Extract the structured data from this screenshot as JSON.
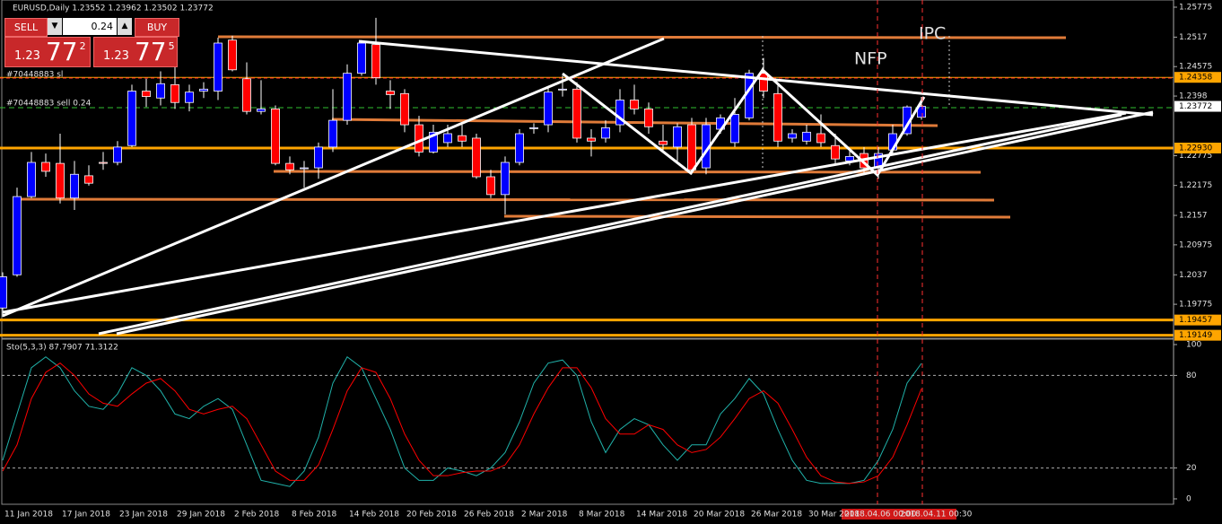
{
  "header": {
    "symbol_title": "EURUSD,Daily  1.23552 1.23962 1.23502 1.23772"
  },
  "trade_panel": {
    "sell_label": "SELL",
    "buy_label": "BUY",
    "lot": "0.24",
    "sell_price": {
      "big": "1.23",
      "main": "77",
      "sup": "2"
    },
    "buy_price": {
      "big": "1.23",
      "main": "77",
      "sup": "5"
    }
  },
  "orders": {
    "sl_label": "#70448883 sl",
    "order_label": "#70448883 sell 0.24"
  },
  "annotations": {
    "nfp": "NFP",
    "ipc": "IPC"
  },
  "time_markers": [
    "2018.04.06 00:00",
    "2018.04.11 00:30"
  ],
  "chart_data": [
    {
      "type": "candlestick",
      "categories": [
        "11 Jan 2018",
        null,
        null,
        null,
        "17 Jan 2018",
        null,
        null,
        null,
        "23 Jan 2018",
        null,
        null,
        null,
        "29 Jan 2018",
        null,
        null,
        null,
        "2 Feb 2018",
        null,
        null,
        null,
        "8 Feb 2018",
        null,
        null,
        null,
        "14 Feb 2018",
        null,
        null,
        null,
        "20 Feb 2018",
        null,
        null,
        null,
        "26 Feb 2018",
        null,
        null,
        null,
        "2 Mar 2018",
        null,
        null,
        null,
        "8 Mar 2018",
        null,
        null,
        null,
        "14 Mar 2018",
        null,
        null,
        null,
        "20 Mar 2018",
        null,
        null,
        null,
        "26 Mar 2018",
        null,
        null,
        null,
        "30 Mar 2018",
        null,
        null,
        null,
        null,
        null,
        null,
        null,
        null
      ],
      "open": [
        1.197,
        1.2037,
        1.2195,
        1.2264,
        1.2262,
        1.2192,
        1.2237,
        1.2264,
        1.2264,
        1.2298,
        1.2408,
        1.2394,
        1.2421,
        1.2385,
        1.2408,
        1.2408,
        1.2511,
        1.2433,
        1.2367,
        1.2372,
        1.2262,
        1.2253,
        1.2253,
        1.2295,
        1.2349,
        1.2444,
        1.2502,
        1.2408,
        1.2403,
        1.234,
        1.2285,
        1.2304,
        1.2318,
        1.2313,
        1.2235,
        1.2199,
        1.2264,
        1.2334,
        1.234,
        1.2412,
        1.2412,
        1.2313,
        1.2313,
        1.234,
        1.239,
        1.2372,
        1.2307,
        1.2295,
        1.234,
        1.2253,
        1.2331,
        1.2304,
        1.2354,
        1.2444,
        1.2403,
        1.2313,
        1.2307,
        1.2322,
        1.2298,
        1.2267,
        1.2282,
        1.2253,
        1.2289,
        1.2322,
        1.23552
      ],
      "high": [
        1.2042,
        1.2213,
        1.2285,
        1.2282,
        1.2322,
        1.2267,
        1.2258,
        1.2285,
        1.2307,
        1.2421,
        1.2433,
        1.2448,
        1.2466,
        1.2421,
        1.2426,
        1.2516,
        1.252,
        1.2466,
        1.243,
        1.2379,
        1.2276,
        1.2267,
        1.2304,
        1.2412,
        1.2462,
        1.2511,
        1.2556,
        1.243,
        1.2412,
        1.2358,
        1.234,
        1.234,
        1.234,
        1.2322,
        1.2249,
        1.2276,
        1.2331,
        1.2343,
        1.2415,
        1.2439,
        1.2426,
        1.2331,
        1.2349,
        1.2412,
        1.2421,
        1.2385,
        1.234,
        1.2343,
        1.2354,
        1.2354,
        1.2361,
        1.2394,
        1.2451,
        1.2475,
        1.2421,
        1.2331,
        1.234,
        1.2361,
        1.2322,
        1.2289,
        1.2295,
        1.2295,
        1.234,
        1.2379,
        1.23962
      ],
      "low": [
        1.1952,
        1.2033,
        1.2192,
        1.2235,
        1.2181,
        1.2168,
        1.2217,
        1.2249,
        1.2258,
        1.2295,
        1.2376,
        1.2379,
        1.2372,
        1.2367,
        1.2394,
        1.239,
        1.2448,
        1.2361,
        1.2361,
        1.2258,
        1.224,
        1.2213,
        1.2231,
        1.2285,
        1.234,
        1.2439,
        1.2421,
        1.2372,
        1.2325,
        1.2276,
        1.2282,
        1.2295,
        1.2295,
        1.2231,
        1.2192,
        1.2159,
        1.2258,
        1.2322,
        1.2325,
        1.2397,
        1.2304,
        1.2276,
        1.2304,
        1.2325,
        1.2361,
        1.2322,
        1.2285,
        1.2267,
        1.224,
        1.224,
        1.2322,
        1.2295,
        1.2349,
        1.2394,
        1.2295,
        1.2304,
        1.23,
        1.2295,
        1.2258,
        1.2258,
        1.224,
        1.2231,
        1.2282,
        1.2318,
        1.23502
      ],
      "close": [
        1.2033,
        1.2195,
        1.2264,
        1.2246,
        1.2192,
        1.224,
        1.2222,
        1.2262,
        1.2295,
        1.2408,
        1.2397,
        1.2423,
        1.2385,
        1.2406,
        1.2412,
        1.2505,
        1.2451,
        1.2367,
        1.2372,
        1.2262,
        1.2249,
        1.2253,
        1.2295,
        1.2349,
        1.2444,
        1.2505,
        1.2435,
        1.2401,
        1.234,
        1.2285,
        1.2325,
        1.2322,
        1.2307,
        1.2235,
        1.2199,
        1.2264,
        1.2322,
        1.2334,
        1.2406,
        1.2412,
        1.2313,
        1.2307,
        1.2334,
        1.239,
        1.2372,
        1.2336,
        1.23,
        1.2336,
        1.2249,
        1.234,
        1.2354,
        1.2361,
        1.2444,
        1.2408,
        1.2307,
        1.2322,
        1.2325,
        1.2304,
        1.2271,
        1.2276,
        1.2253,
        1.2282,
        1.2322,
        1.2376,
        1.23772
      ],
      "up_color": "#0000ff",
      "down_color": "#ff0000",
      "wick_color": "#ffffff",
      "ylim": [
        1.1907,
        1.2592
      ],
      "yticks": [
        1.25775,
        1.2517,
        1.24575,
        1.2398,
        1.22775,
        1.22175,
        1.2157,
        1.20975,
        1.2037,
        1.19775
      ],
      "levels": [
        1.24358,
        {
          "value": 1.2293,
          "label": "1.22930"
        },
        1.19457,
        1.19149
      ],
      "level_color": "#ffa500",
      "current_price": 1.23772
    },
    {
      "type": "line",
      "title": "Sto(5,3,3) 87.7907 71.3122",
      "ylim": [
        -3.5,
        103.5
      ],
      "yticks": [
        0,
        20,
        80,
        100
      ],
      "levels": [
        20,
        80
      ],
      "series": [
        {
          "color": "#20b2aa",
          "values": [
            25,
            55,
            85,
            92,
            85,
            70,
            60,
            58,
            68,
            85,
            80,
            70,
            55,
            52,
            60,
            65,
            58,
            35,
            12,
            10,
            8,
            18,
            40,
            75,
            92,
            85,
            65,
            45,
            20,
            12,
            12,
            20,
            18,
            15,
            20,
            30,
            50,
            75,
            88,
            90,
            80,
            50,
            30,
            45,
            52,
            48,
            35,
            25,
            35,
            35,
            55,
            65,
            78,
            68,
            45,
            25,
            12,
            10,
            10,
            10,
            12,
            25,
            45,
            75,
            87.7907
          ]
        },
        {
          "color": "#ff0000",
          "values": [
            18,
            35,
            65,
            82,
            88,
            80,
            68,
            62,
            60,
            68,
            75,
            78,
            70,
            58,
            55,
            58,
            60,
            52,
            35,
            18,
            12,
            12,
            22,
            45,
            70,
            85,
            82,
            65,
            42,
            25,
            15,
            15,
            17,
            18,
            18,
            22,
            35,
            55,
            72,
            85,
            85,
            72,
            52,
            42,
            42,
            48,
            45,
            35,
            30,
            32,
            40,
            52,
            65,
            70,
            62,
            45,
            27,
            15,
            11,
            10,
            11,
            15,
            27,
            48,
            71.3122
          ]
        }
      ]
    }
  ]
}
